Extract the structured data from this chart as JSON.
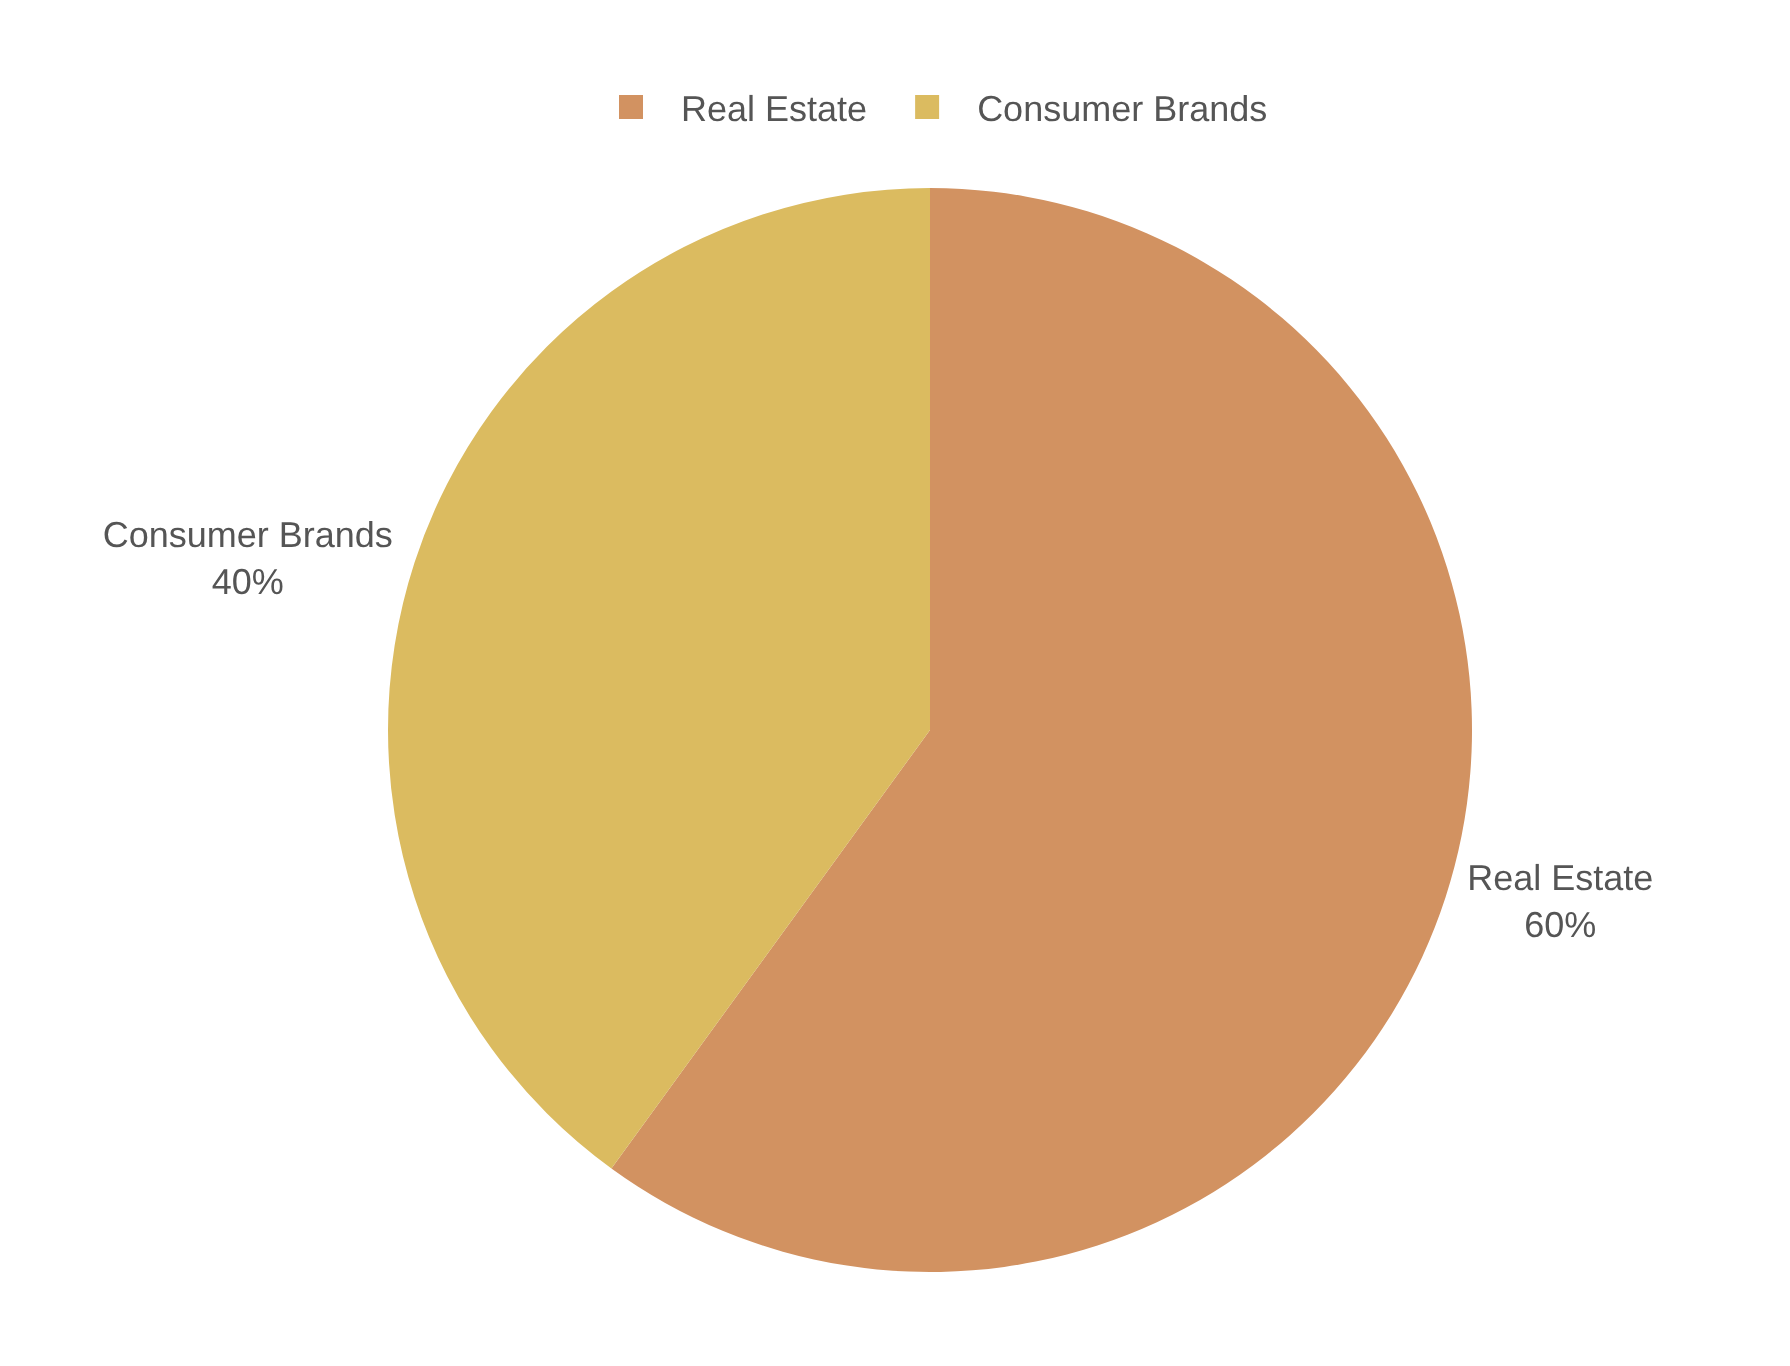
{
  "chart_data": {
    "type": "pie",
    "categories": [
      "Real Estate",
      "Consumer Brands"
    ],
    "values": [
      60,
      40
    ],
    "colors": [
      "#d29261",
      "#dbbb60"
    ],
    "value_labels": [
      "60%",
      "40%"
    ],
    "legend": "top"
  }
}
